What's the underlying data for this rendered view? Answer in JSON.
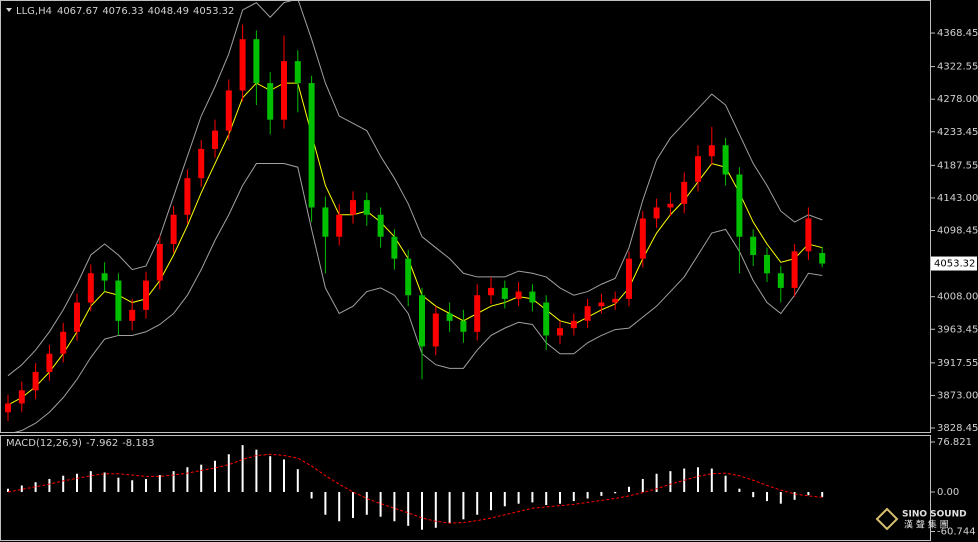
{
  "chart_data": [
    {
      "type": "candlestick",
      "symbol": "LLG,H4",
      "header_values": [
        4067.67,
        4076.33,
        4048.49,
        4053.32
      ],
      "open": [
        3850,
        3862,
        3880,
        3905,
        3930,
        3960,
        4000,
        4040,
        4030,
        3975,
        3990,
        4030,
        4080,
        4120,
        4170,
        4210,
        4235,
        4290,
        4360,
        4300,
        4250,
        4330,
        4300,
        4130,
        4090,
        4120,
        4140,
        4120,
        4090,
        4060,
        4010,
        3940,
        3985,
        3975,
        3960,
        4010,
        4020,
        4005,
        4015,
        4000,
        3955,
        3965,
        3975,
        3995,
        4000,
        4005,
        4060,
        4115,
        4130,
        4135,
        4165,
        4200,
        4215,
        4175,
        4090,
        4065,
        4040,
        4020,
        4070,
        4067.67
      ],
      "high": [
        3874,
        3892,
        3917,
        3942,
        3972,
        4012,
        4052,
        4055,
        4040,
        4005,
        4042,
        4092,
        4132,
        4182,
        4222,
        4250,
        4305,
        4380,
        4372,
        4315,
        4365,
        4345,
        4310,
        4145,
        4135,
        4152,
        4150,
        4130,
        4100,
        4072,
        4020,
        3995,
        4000,
        3990,
        4025,
        4035,
        4030,
        4028,
        4025,
        4010,
        3975,
        3985,
        4005,
        4012,
        4015,
        4070,
        4125,
        4142,
        4150,
        4178,
        4215,
        4240,
        4225,
        4185,
        4100,
        4075,
        4050,
        4080,
        4130,
        4076.33
      ],
      "low": [
        3838,
        3850,
        3868,
        3893,
        3918,
        3948,
        3988,
        4015,
        3955,
        3962,
        3978,
        4018,
        4068,
        4108,
        4158,
        4198,
        4222,
        4275,
        4270,
        4230,
        4238,
        4260,
        4110,
        4040,
        4078,
        4108,
        4105,
        4075,
        4045,
        3995,
        3895,
        3928,
        3960,
        3945,
        3948,
        3998,
        3992,
        3995,
        3988,
        3935,
        3943,
        3955,
        3965,
        3985,
        3990,
        3995,
        4048,
        4102,
        4118,
        4122,
        4152,
        4188,
        4160,
        4040,
        4050,
        4028,
        4000,
        4008,
        4058,
        4048.49
      ],
      "close": [
        3862,
        3880,
        3905,
        3930,
        3960,
        4000,
        4040,
        4030,
        3975,
        3990,
        4030,
        4080,
        4120,
        4170,
        4210,
        4235,
        4290,
        4360,
        4300,
        4250,
        4330,
        4300,
        4130,
        4090,
        4120,
        4140,
        4120,
        4090,
        4060,
        4010,
        3940,
        3985,
        3975,
        3960,
        4010,
        4020,
        4005,
        4015,
        4000,
        3955,
        3965,
        3975,
        3995,
        4000,
        4005,
        4060,
        4115,
        4130,
        4135,
        4165,
        4200,
        4215,
        4175,
        4090,
        4065,
        4040,
        4020,
        4070,
        4115,
        4053.32
      ],
      "up_color": "#ff0000",
      "down_color": "#00c000",
      "overlays": [
        {
          "color": "#a0a0a0",
          "values": [
            3900,
            3915,
            3935,
            3960,
            3990,
            4025,
            4065,
            4080,
            4065,
            4045,
            4050,
            4090,
            4145,
            4200,
            4255,
            4295,
            4340,
            4400,
            4410,
            4390,
            4410,
            4415,
            4360,
            4300,
            4255,
            4245,
            4235,
            4200,
            4170,
            4135,
            4090,
            4075,
            4060,
            4040,
            4035,
            4035,
            4035,
            4043,
            4040,
            4035,
            4020,
            4010,
            4015,
            4025,
            4033,
            4075,
            4140,
            4195,
            4225,
            4245,
            4265,
            4285,
            4270,
            4230,
            4190,
            4160,
            4125,
            4110,
            4120,
            4113
          ]
        },
        {
          "color": "#ffff00",
          "values": [
            3860,
            3870,
            3885,
            3905,
            3930,
            3960,
            3995,
            4015,
            4010,
            4000,
            4005,
            4030,
            4065,
            4105,
            4150,
            4190,
            4230,
            4280,
            4300,
            4290,
            4300,
            4300,
            4230,
            4160,
            4120,
            4120,
            4125,
            4110,
            4090,
            4060,
            4010,
            3995,
            3985,
            3975,
            3985,
            3995,
            4000,
            4008,
            4005,
            3990,
            3975,
            3970,
            3980,
            3990,
            3998,
            4020,
            4060,
            4095,
            4120,
            4140,
            4165,
            4190,
            4185,
            4150,
            4110,
            4080,
            4055,
            4060,
            4080,
            4075
          ]
        },
        {
          "color": "#a0a0a0",
          "values": [
            3820,
            3825,
            3835,
            3850,
            3870,
            3895,
            3925,
            3950,
            3955,
            3955,
            3960,
            3970,
            3985,
            4010,
            4045,
            4085,
            4120,
            4160,
            4190,
            4190,
            4190,
            4185,
            4100,
            4020,
            3985,
            3995,
            4015,
            4020,
            4010,
            3985,
            3930,
            3915,
            3910,
            3910,
            3935,
            3955,
            3965,
            3973,
            3970,
            3945,
            3930,
            3930,
            3945,
            3955,
            3963,
            3965,
            3980,
            3995,
            4015,
            4035,
            4065,
            4095,
            4100,
            4070,
            4030,
            4000,
            3985,
            4010,
            4040,
            4037
          ]
        }
      ],
      "last_price": 4053.32,
      "ylim": [
        3823,
        4413.6
      ],
      "yticks": [
        4368.45,
        4322.55,
        {
          "value": 4278,
          "label": "4278.00"
        },
        4233.45,
        4187.55,
        {
          "value": 4143,
          "label": "4143.00"
        },
        4098.45,
        {
          "value": 4008,
          "label": "4008.00"
        },
        3963.45,
        3917.55,
        {
          "value": 3873,
          "label": "3873.00"
        },
        3828.45
      ]
    },
    {
      "type": "macd",
      "label": "MACD(12,26,9)",
      "label_values": [
        -7.962,
        -8.183
      ],
      "histogram": {
        "color": "#ffffff",
        "values": [
          5,
          10,
          15,
          20,
          25,
          28,
          32,
          30,
          22,
          18,
          20,
          26,
          32,
          38,
          42,
          48,
          58,
          72,
          65,
          55,
          50,
          35,
          -10,
          -35,
          -45,
          -40,
          -35,
          -38,
          -45,
          -52,
          -58,
          -55,
          -48,
          -42,
          -35,
          -28,
          -22,
          -18,
          -16,
          -20,
          -18,
          -14,
          -10,
          -6,
          -2,
          8,
          20,
          28,
          32,
          36,
          38,
          36,
          25,
          5,
          -8,
          -14,
          -18,
          -12,
          -5,
          -7.962
        ]
      },
      "signal": {
        "color": "#ff0000",
        "values": [
          0,
          4,
          8,
          12,
          17,
          21,
          25,
          28,
          28,
          26,
          24,
          24,
          26,
          29,
          33,
          37,
          42,
          50,
          56,
          58,
          56,
          52,
          40,
          25,
          12,
          0,
          -10,
          -18,
          -25,
          -32,
          -40,
          -45,
          -48,
          -47,
          -44,
          -40,
          -35,
          -30,
          -25,
          -23,
          -21,
          -19,
          -16,
          -13,
          -10,
          -6,
          -1,
          5,
          12,
          18,
          24,
          28,
          29,
          25,
          18,
          10,
          3,
          -3,
          -6,
          -8.183
        ]
      },
      "ylim": [
        -73.8,
        86.04
      ],
      "yticks": [
        76.821,
        {
          "value": 0,
          "label": "0.00"
        },
        -60.744
      ]
    }
  ],
  "watermark": {
    "brand": "SINO SOUND",
    "brand_cn": "漢 聲 集 團"
  }
}
